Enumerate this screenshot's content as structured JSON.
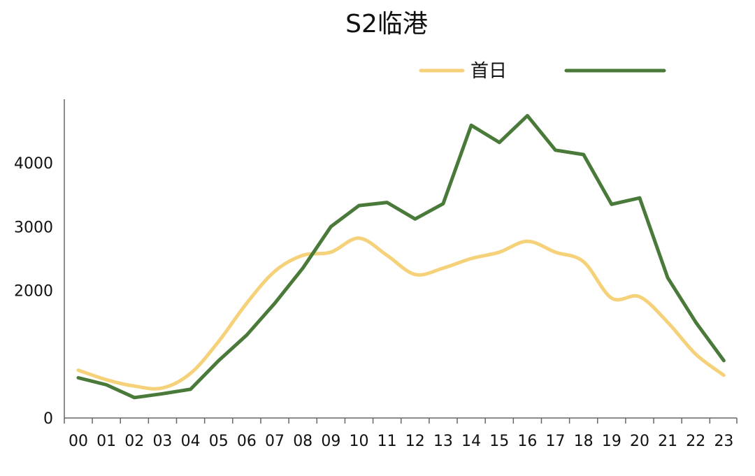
{
  "chart_data": {
    "type": "line",
    "title": "S2临港",
    "xlabel": "",
    "ylabel": "",
    "categories": [
      "00",
      "01",
      "02",
      "03",
      "04",
      "05",
      "06",
      "07",
      "08",
      "09",
      "10",
      "11",
      "12",
      "13",
      "14",
      "15",
      "16",
      "17",
      "18",
      "19",
      "20",
      "21",
      "22",
      "23"
    ],
    "y_ticks": [
      0,
      2000,
      3000,
      4000
    ],
    "ylim": [
      0,
      5000
    ],
    "grid": false,
    "legend_position": "top-right",
    "series": [
      {
        "name": "首日",
        "color": "#F5D27A",
        "smooth": true,
        "values": [
          750,
          600,
          500,
          470,
          700,
          1200,
          1800,
          2300,
          2550,
          2600,
          2820,
          2550,
          2250,
          2350,
          2500,
          2600,
          2770,
          2600,
          2450,
          1880,
          1900,
          1500,
          1000,
          670
        ]
      },
      {
        "name": "",
        "color": "#4A7A3A",
        "smooth": false,
        "values": [
          630,
          520,
          320,
          380,
          450,
          900,
          1300,
          1800,
          2350,
          3000,
          3330,
          3380,
          3120,
          3360,
          4590,
          4320,
          4740,
          4200,
          4130,
          3350,
          3450,
          2200,
          1500,
          900
        ]
      }
    ]
  }
}
